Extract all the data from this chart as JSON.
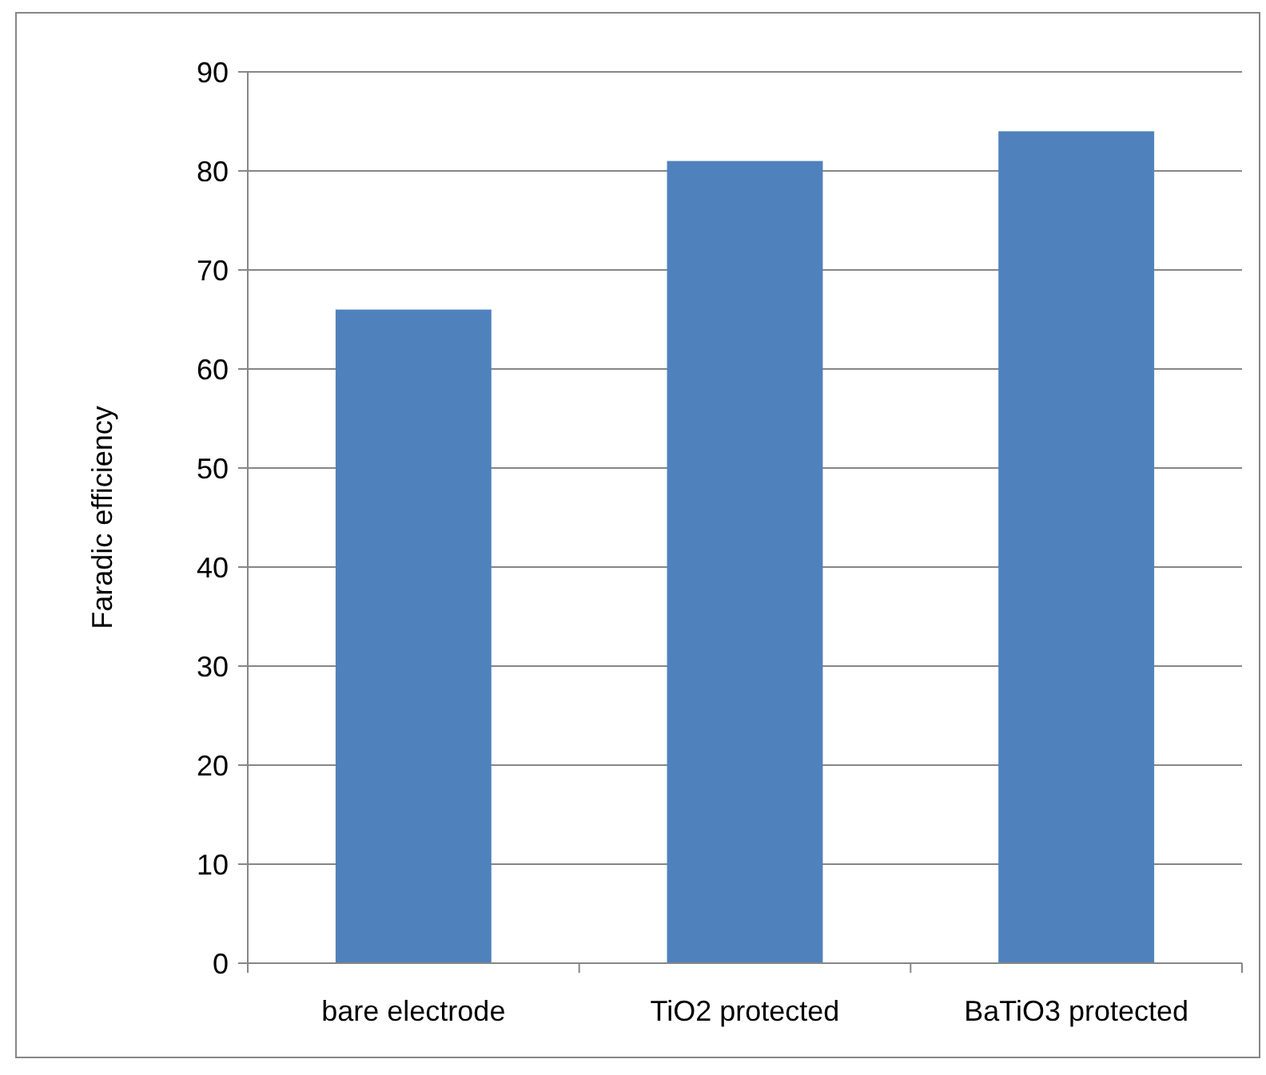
{
  "chart_data": {
    "type": "bar",
    "ylabel": "Faradic efficiency",
    "categories": [
      "bare electrode",
      "TiO2 protected",
      "BaTiO3 protected"
    ],
    "values": [
      66,
      81,
      84
    ],
    "color": "#4f81bd",
    "ylim": [
      0,
      90
    ],
    "yticks": [
      0,
      10,
      20,
      30,
      40,
      50,
      60,
      70,
      80,
      90
    ],
    "grid": "y"
  }
}
